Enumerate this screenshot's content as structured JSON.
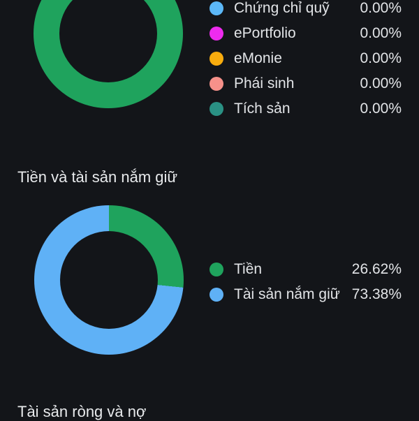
{
  "colors": {
    "background": "#131519",
    "text": "#E2E4E7",
    "green": "#1FA35D",
    "blue": "#5FB1F6"
  },
  "sections": {
    "allocation": {
      "legend": [
        {
          "label": "Chứng chỉ quỹ",
          "value": "0.00%",
          "color": "#5CB8F8"
        },
        {
          "label": "ePortfolio",
          "value": "0.00%",
          "color": "#EE2BEE"
        },
        {
          "label": "eMonie",
          "value": "0.00%",
          "color": "#F8AC0E"
        },
        {
          "label": "Phái sinh",
          "value": "0.00%",
          "color": "#F6918A"
        },
        {
          "label": "Tích sản",
          "value": "0.00%",
          "color": "#2A9184"
        }
      ]
    },
    "holdings": {
      "title": "Tiền và tài sản nắm giữ",
      "legend": [
        {
          "label": "Tiền",
          "value": "26.62%",
          "color": "#1FA35D"
        },
        {
          "label": "Tài sản nắm giữ",
          "value": "73.38%",
          "color": "#5FB1F6"
        }
      ]
    },
    "net_assets": {
      "title": "Tài sản ròng và nợ"
    }
  },
  "chart_data": [
    {
      "type": "pie",
      "donut": true,
      "title": "",
      "segments": [
        {
          "label": "",
          "value": 100,
          "color": "#1FA35D"
        }
      ],
      "legend_entries": [
        {
          "label": "Chứng chỉ quỹ",
          "value": 0.0
        },
        {
          "label": "ePortfolio",
          "value": 0.0
        },
        {
          "label": "eMonie",
          "value": 0.0
        },
        {
          "label": "Phái sinh",
          "value": 0.0
        },
        {
          "label": "Tích sản",
          "value": 0.0
        }
      ],
      "legend_position": "right"
    },
    {
      "type": "pie",
      "donut": true,
      "title": "Tiền và tài sản nắm giữ",
      "segments": [
        {
          "label": "Tiền",
          "value": 26.62,
          "color": "#1FA35D"
        },
        {
          "label": "Tài sản nắm giữ",
          "value": 73.38,
          "color": "#5FB1F6"
        }
      ],
      "legend_position": "right"
    }
  ]
}
